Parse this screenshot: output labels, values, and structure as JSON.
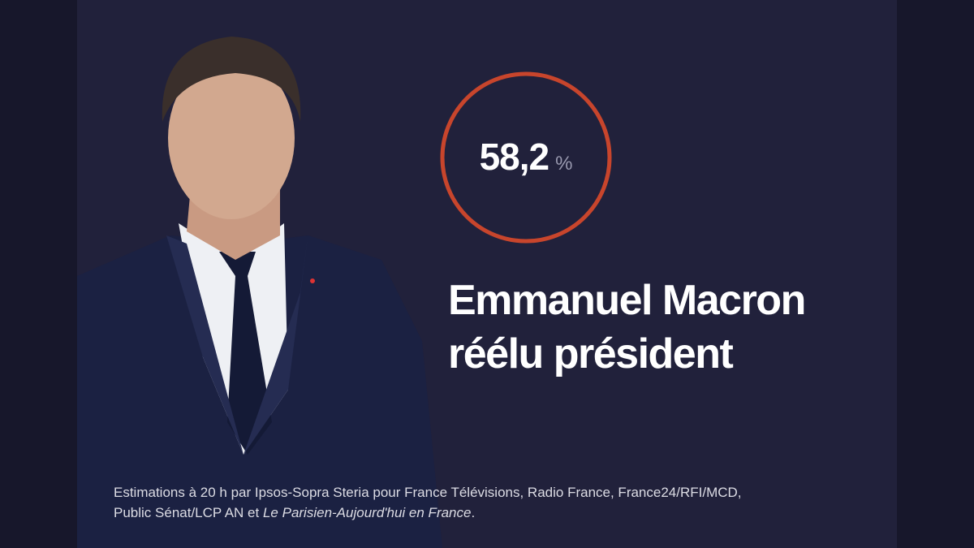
{
  "result": {
    "percentage": "58,2",
    "unit": "%"
  },
  "headline": [
    "Emmanuel Macron",
    "réélu président"
  ],
  "source": {
    "line1": "Estimations à 20 h par Ipsos-Sopra Steria pour France Télévisions, Radio France, France24/RFI/MCD,",
    "line2_prefix": "Public Sénat/LCP AN et ",
    "line2_italic": "Le Parisien-Aujourd'hui en France",
    "line2_suffix": "."
  }
}
